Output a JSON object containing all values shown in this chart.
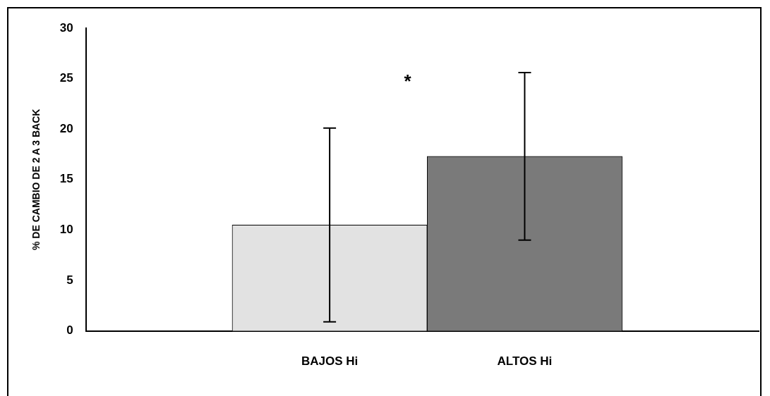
{
  "chart_data": {
    "type": "bar",
    "ylabel": "% DE CAMBIO DE 2 A 3 BACK",
    "categories": [
      "BAJOS Hi",
      "ALTOS Hi"
    ],
    "values": [
      10.5,
      17.3
    ],
    "colors": [
      "#e2e2e2",
      "#7a7a7a"
    ],
    "errors": [
      9.6,
      8.3
    ],
    "ylim": [
      0,
      30
    ],
    "yticks": [
      0,
      5,
      10,
      15,
      20,
      25,
      30
    ],
    "grid": false,
    "legend": false,
    "annotations": [
      "*"
    ]
  }
}
